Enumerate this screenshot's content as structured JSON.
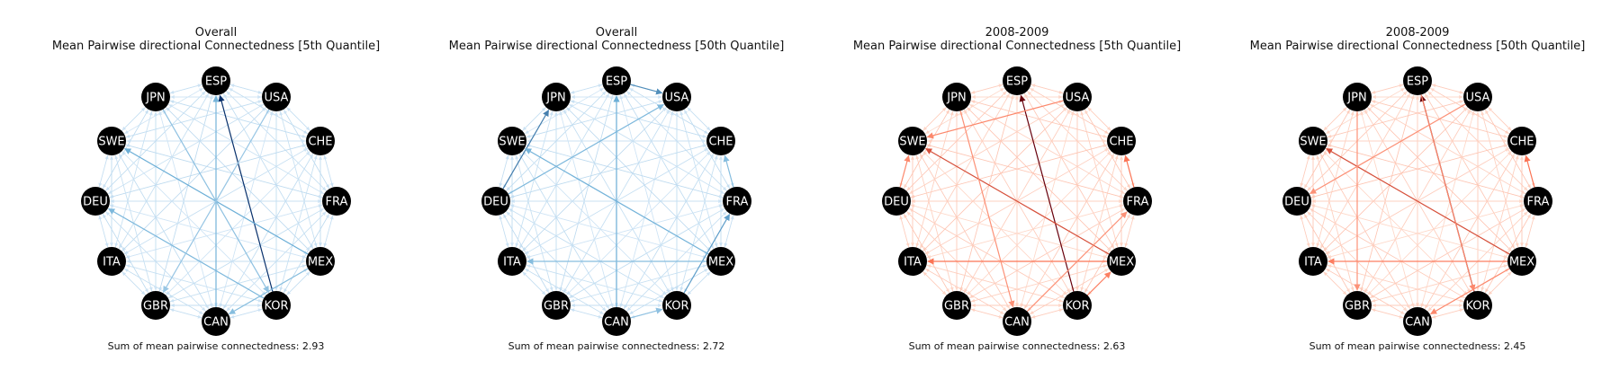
{
  "figure": {
    "nodes": [
      "ESP",
      "USA",
      "CHE",
      "FRA",
      "MEX",
      "KOR",
      "CAN",
      "GBR",
      "ITA",
      "DEU",
      "SWE",
      "JPN"
    ],
    "panels": [
      {
        "title_line1": "Overall",
        "title_line2": "Mean Pairwise directional Connectedness [5th Quantile]",
        "sum_text": "Sum of mean pairwise connectedness: 2.93",
        "palette": "blues",
        "strong_edges": [
          {
            "from": "KOR",
            "to": "ESP",
            "level": 1.0
          },
          {
            "from": "MEX",
            "to": "SWE",
            "level": 0.6
          },
          {
            "from": "CAN",
            "to": "ESP",
            "level": 0.55
          },
          {
            "from": "KOR",
            "to": "DEU",
            "level": 0.5
          },
          {
            "from": "MEX",
            "to": "CAN",
            "level": 0.45
          },
          {
            "from": "JPN",
            "to": "KOR",
            "level": 0.4
          },
          {
            "from": "USA",
            "to": "GBR",
            "level": 0.35
          }
        ]
      },
      {
        "title_line1": "Overall",
        "title_line2": "Mean Pairwise directional Connectedness [50th Quantile]",
        "sum_text": "Sum of mean pairwise connectedness: 2.72",
        "palette": "blues",
        "strong_edges": [
          {
            "from": "DEU",
            "to": "JPN",
            "level": 0.75
          },
          {
            "from": "ESP",
            "to": "USA",
            "level": 0.7
          },
          {
            "from": "KOR",
            "to": "FRA",
            "level": 0.65
          },
          {
            "from": "CAN",
            "to": "ESP",
            "level": 0.6
          },
          {
            "from": "MEX",
            "to": "SWE",
            "level": 0.55
          },
          {
            "from": "DEU",
            "to": "USA",
            "level": 0.5
          },
          {
            "from": "MEX",
            "to": "ITA",
            "level": 0.45
          },
          {
            "from": "FRA",
            "to": "CHE",
            "level": 0.45
          },
          {
            "from": "CAN",
            "to": "KOR",
            "level": 0.4
          }
        ]
      },
      {
        "title_line1": "2008-2009",
        "title_line2": "Mean Pairwise directional Connectedness [5th Quantile]",
        "sum_text": "Sum of mean pairwise connectedness: 2.63",
        "palette": "reds",
        "strong_edges": [
          {
            "from": "KOR",
            "to": "ESP",
            "level": 1.0
          },
          {
            "from": "MEX",
            "to": "SWE",
            "level": 0.7
          },
          {
            "from": "MEX",
            "to": "ITA",
            "level": 0.55
          },
          {
            "from": "FRA",
            "to": "CHE",
            "level": 0.55
          },
          {
            "from": "KOR",
            "to": "MEX",
            "level": 0.5
          },
          {
            "from": "USA",
            "to": "SWE",
            "level": 0.45
          },
          {
            "from": "DEU",
            "to": "SWE",
            "level": 0.45
          },
          {
            "from": "JPN",
            "to": "CAN",
            "level": 0.4
          },
          {
            "from": "CAN",
            "to": "FRA",
            "level": 0.4
          }
        ]
      },
      {
        "title_line1": "2008-2009",
        "title_line2": "Mean Pairwise directional Connectedness [50th Quantile]",
        "sum_text": "Sum of mean pairwise connectedness: 2.45",
        "palette": "reds",
        "strong_edges": [
          {
            "from": "KOR",
            "to": "ESP",
            "level": 1.0
          },
          {
            "from": "MEX",
            "to": "SWE",
            "level": 0.7
          },
          {
            "from": "MEX",
            "to": "ITA",
            "level": 0.5
          },
          {
            "from": "FRA",
            "to": "CHE",
            "level": 0.55
          },
          {
            "from": "ESP",
            "to": "KOR",
            "level": 0.45
          },
          {
            "from": "USA",
            "to": "DEU",
            "level": 0.4
          },
          {
            "from": "JPN",
            "to": "GBR",
            "level": 0.4
          },
          {
            "from": "MEX",
            "to": "CAN",
            "level": 0.45
          }
        ]
      }
    ]
  }
}
